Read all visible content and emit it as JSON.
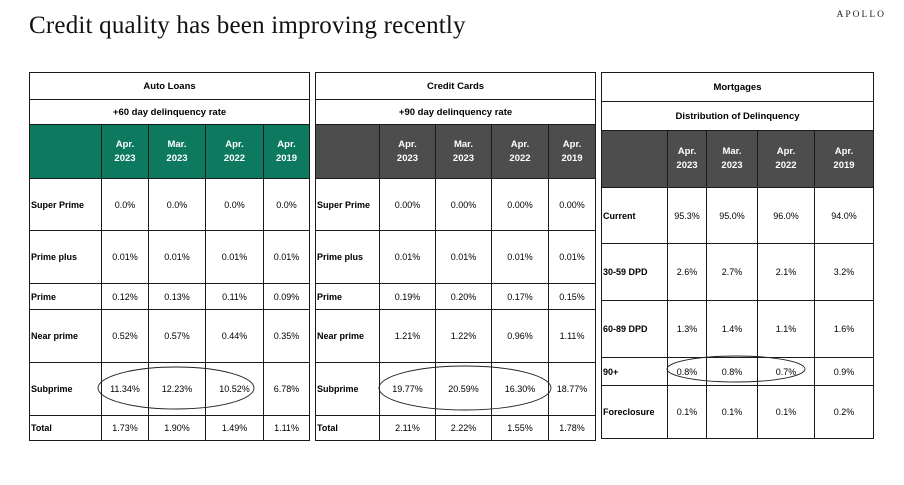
{
  "page": {
    "title": "Credit quality has been improving recently",
    "brand": "APOLLO"
  },
  "auto_loans": {
    "name": "Auto Loans",
    "subtitle": "+60 day delinquency rate",
    "columns": [
      [
        "Apr.",
        "2023"
      ],
      [
        "Mar.",
        "2023"
      ],
      [
        "Apr.",
        "2022"
      ],
      [
        "Apr.",
        "2019"
      ]
    ],
    "rows": [
      {
        "label": "Super Prime",
        "values": [
          "0.0%",
          "0.0%",
          "0.0%",
          "0.0%"
        ]
      },
      {
        "label": "Prime plus",
        "values": [
          "0.01%",
          "0.01%",
          "0.01%",
          "0.01%"
        ]
      },
      {
        "label": "Prime",
        "values": [
          "0.12%",
          "0.13%",
          "0.11%",
          "0.09%"
        ]
      },
      {
        "label": "Near prime",
        "values": [
          "0.52%",
          "0.57%",
          "0.44%",
          "0.35%"
        ]
      },
      {
        "label": "Subprime",
        "values": [
          "11.34%",
          "12.23%",
          "10.52%",
          "6.78%"
        ]
      },
      {
        "label": "Total",
        "values": [
          "1.73%",
          "1.90%",
          "1.49%",
          "1.11%"
        ]
      }
    ]
  },
  "credit_cards": {
    "name": "Credit Cards",
    "subtitle": "+90 day delinquency rate",
    "columns": [
      [
        "Apr.",
        "2023"
      ],
      [
        "Mar.",
        "2023"
      ],
      [
        "Apr.",
        "2022"
      ],
      [
        "Apr.",
        "2019"
      ]
    ],
    "rows": [
      {
        "label": "Super Prime",
        "values": [
          "0.00%",
          "0.00%",
          "0.00%",
          "0.00%"
        ]
      },
      {
        "label": "Prime plus",
        "values": [
          "0.01%",
          "0.01%",
          "0.01%",
          "0.01%"
        ]
      },
      {
        "label": "Prime",
        "values": [
          "0.19%",
          "0.20%",
          "0.17%",
          "0.15%"
        ]
      },
      {
        "label": "Near prime",
        "values": [
          "1.21%",
          "1.22%",
          "0.96%",
          "1.11%"
        ]
      },
      {
        "label": "Subprime",
        "values": [
          "19.77%",
          "20.59%",
          "16.30%",
          "18.77%"
        ]
      },
      {
        "label": "Total",
        "values": [
          "2.11%",
          "2.22%",
          "1.55%",
          "1.78%"
        ]
      }
    ]
  },
  "mortgages": {
    "name": "Mortgages",
    "subtitle": "Distribution of Delinquency",
    "columns": [
      [
        "Apr.",
        "2023"
      ],
      [
        "Mar.",
        "2023"
      ],
      [
        "Apr.",
        "2022"
      ],
      [
        "Apr.",
        "2019"
      ]
    ],
    "rows": [
      {
        "label": "Current",
        "values": [
          "95.3%",
          "95.0%",
          "96.0%",
          "94.0%"
        ]
      },
      {
        "label": "30-59  DPD",
        "values": [
          "2.6%",
          "2.7%",
          "2.1%",
          "3.2%"
        ]
      },
      {
        "label": "60-89  DPD",
        "values": [
          "1.3%",
          "1.4%",
          "1.1%",
          "1.6%"
        ]
      },
      {
        "label": "90+",
        "values": [
          "0.8%",
          "0.8%",
          "0.7%",
          "0.9%"
        ]
      },
      {
        "label": "Foreclosure",
        "values": [
          "0.1%",
          "0.1%",
          "0.1%",
          "0.2%"
        ]
      }
    ]
  },
  "colors": {
    "auto_header": "#0d7a5f",
    "card_header": "#4d4d4d",
    "border": "#1a1a1a"
  }
}
